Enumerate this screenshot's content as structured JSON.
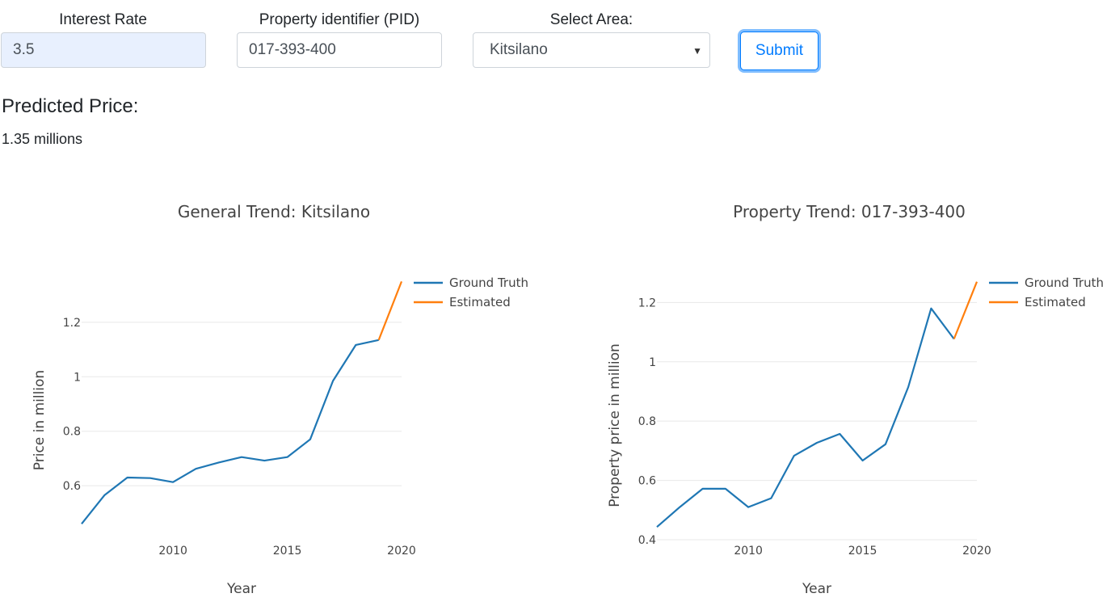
{
  "form": {
    "interest_rate": {
      "label": "Interest Rate",
      "value": "3.5"
    },
    "pid": {
      "label": "Property identifier (PID)",
      "value": "017-393-400"
    },
    "area": {
      "label": "Select Area:",
      "value": "Kitsilano",
      "caret": "▼"
    },
    "submit_label": "Submit"
  },
  "prediction": {
    "heading": "Predicted Price:",
    "value": "1.35 millions"
  },
  "colors": {
    "ground_truth": "#1f77b4",
    "estimated": "#ff7f0e",
    "grid": "#e8e8e8",
    "axis_text": "#444444"
  },
  "chart_data": [
    {
      "type": "line",
      "title": "General Trend: Kitsilano",
      "xlabel": "Year",
      "ylabel": "Price in million",
      "xlim": [
        2006,
        2020
      ],
      "ylim": [
        0.44,
        1.36
      ],
      "x_ticks": [
        2010,
        2015,
        2020
      ],
      "y_ticks": [
        0.6,
        0.8,
        1,
        1.2
      ],
      "legend_position": "top-right",
      "grid": true,
      "series": [
        {
          "name": "Ground Truth",
          "color": "#1f77b4",
          "x": [
            2006,
            2007,
            2008,
            2009,
            2010,
            2011,
            2012,
            2013,
            2014,
            2015,
            2016,
            2017,
            2018,
            2019
          ],
          "y": [
            0.46,
            0.565,
            0.63,
            0.628,
            0.613,
            0.662,
            0.685,
            0.705,
            0.692,
            0.705,
            0.77,
            0.985,
            1.117,
            1.135
          ]
        },
        {
          "name": "Estimated",
          "color": "#ff7f0e",
          "x": [
            2019,
            2020
          ],
          "y": [
            1.135,
            1.35
          ]
        }
      ]
    },
    {
      "type": "line",
      "title": "Property Trend: 017-393-400",
      "xlabel": "Year",
      "ylabel": "Property price in million",
      "xlim": [
        2006,
        2020
      ],
      "ylim": [
        0.4,
        1.28
      ],
      "x_ticks": [
        2010,
        2015,
        2020
      ],
      "y_ticks": [
        0.4,
        0.6,
        0.8,
        1,
        1.2
      ],
      "legend_position": "top-right",
      "grid": true,
      "series": [
        {
          "name": "Ground Truth",
          "color": "#1f77b4",
          "x": [
            2006,
            2007,
            2008,
            2009,
            2010,
            2011,
            2012,
            2013,
            2014,
            2015,
            2016,
            2017,
            2018,
            2019
          ],
          "y": [
            0.443,
            0.51,
            0.572,
            0.572,
            0.51,
            0.54,
            0.683,
            0.727,
            0.757,
            0.667,
            0.722,
            0.915,
            1.18,
            1.077
          ]
        },
        {
          "name": "Estimated",
          "color": "#ff7f0e",
          "x": [
            2019,
            2020
          ],
          "y": [
            1.077,
            1.27
          ]
        }
      ]
    }
  ]
}
